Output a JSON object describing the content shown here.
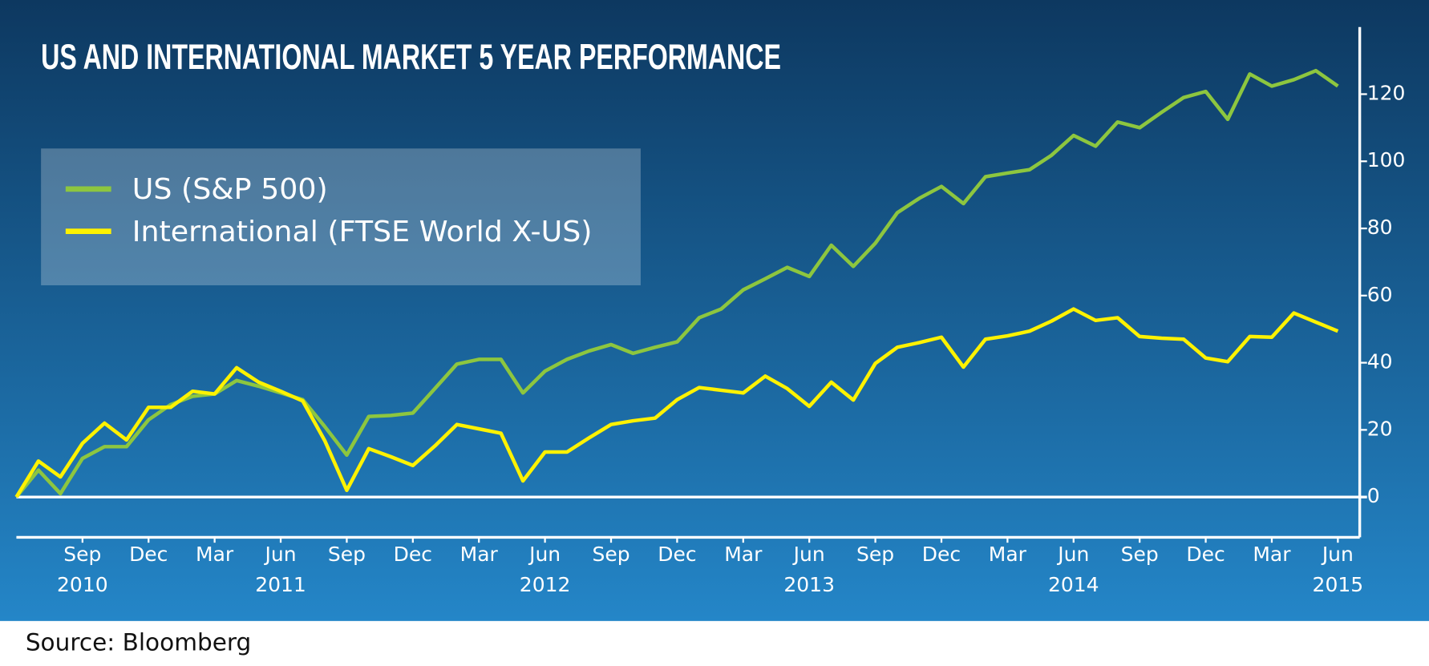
{
  "chart_data": {
    "type": "line",
    "title": "US AND INTERNATIONAL MARKET 5 YEAR PERFORMANCE",
    "source": "Source: Bloomberg",
    "x": [
      "2010-06",
      "2010-07",
      "2010-08",
      "2010-09",
      "2010-10",
      "2010-11",
      "2010-12",
      "2011-01",
      "2011-02",
      "2011-03",
      "2011-04",
      "2011-05",
      "2011-06",
      "2011-07",
      "2011-08",
      "2011-09",
      "2011-10",
      "2011-11",
      "2011-12",
      "2012-01",
      "2012-02",
      "2012-03",
      "2012-04",
      "2012-05",
      "2012-06",
      "2012-07",
      "2012-08",
      "2012-09",
      "2012-10",
      "2012-11",
      "2012-12",
      "2013-01",
      "2013-02",
      "2013-03",
      "2013-04",
      "2013-05",
      "2013-06",
      "2013-07",
      "2013-08",
      "2013-09",
      "2013-10",
      "2013-11",
      "2013-12",
      "2014-01",
      "2014-02",
      "2014-03",
      "2014-04",
      "2014-05",
      "2014-06",
      "2014-07",
      "2014-08",
      "2014-09",
      "2014-10",
      "2014-11",
      "2014-12",
      "2015-01",
      "2015-02",
      "2015-03",
      "2015-04",
      "2015-05",
      "2015-06"
    ],
    "series": [
      {
        "name": "US (S&P 500)",
        "color": "#8dc63f",
        "values": [
          0,
          8,
          1,
          11.5,
          15,
          15,
          23,
          27.5,
          30,
          30.7,
          34.7,
          33,
          31,
          29,
          21,
          12.5,
          24,
          24.3,
          25,
          32.3,
          39.6,
          41,
          41,
          31,
          37.5,
          41,
          43.5,
          45.4,
          42.8,
          44.6,
          46.2,
          53.4,
          56,
          61.7,
          65,
          68.4,
          65.7,
          75,
          68.7,
          75.6,
          84.7,
          89,
          92.5,
          87.4,
          95.4,
          96.5,
          97.5,
          101.8,
          107.7,
          104.5,
          111.7,
          110,
          114.6,
          119,
          120.8,
          112.5,
          126,
          122.4,
          124.3,
          127,
          122.4
        ]
      },
      {
        "name": "International (FTSE World X-US)",
        "color": "#fff200",
        "values": [
          0,
          10.7,
          6,
          16,
          22,
          17,
          26.7,
          26.7,
          31.5,
          30.7,
          38.5,
          34.2,
          31.5,
          28.6,
          16.8,
          2,
          14.4,
          12,
          9.4,
          15.2,
          21.6,
          20.3,
          19,
          4.8,
          13.4,
          13.4,
          17.6,
          21.6,
          22.7,
          23.5,
          29,
          32.6,
          31.8,
          31,
          36,
          32.3,
          27,
          34.2,
          28.9,
          39.8,
          44.6,
          46,
          47.6,
          38.7,
          47,
          48,
          49.4,
          52.4,
          56,
          52.6,
          53.4,
          47.8,
          47.3,
          47,
          41.4,
          40.3,
          47.8,
          47.6,
          54.8,
          52.1,
          49.4
        ]
      }
    ],
    "xticks": [
      {
        "value": "2010-09",
        "label": "Sep"
      },
      {
        "value": "2010-12",
        "label": "Dec"
      },
      {
        "value": "2011-03",
        "label": "Mar"
      },
      {
        "value": "2011-06",
        "label": "Jun"
      },
      {
        "value": "2011-09",
        "label": "Sep"
      },
      {
        "value": "2011-12",
        "label": "Dec"
      },
      {
        "value": "2012-03",
        "label": "Mar"
      },
      {
        "value": "2012-06",
        "label": "Jun"
      },
      {
        "value": "2012-09",
        "label": "Sep"
      },
      {
        "value": "2012-12",
        "label": "Dec"
      },
      {
        "value": "2013-03",
        "label": "Mar"
      },
      {
        "value": "2013-06",
        "label": "Jun"
      },
      {
        "value": "2013-09",
        "label": "Sep"
      },
      {
        "value": "2013-12",
        "label": "Dec"
      },
      {
        "value": "2014-03",
        "label": "Mar"
      },
      {
        "value": "2014-06",
        "label": "Jun"
      },
      {
        "value": "2014-09",
        "label": "Sep"
      },
      {
        "value": "2014-12",
        "label": "Dec"
      },
      {
        "value": "2015-03",
        "label": "Mar"
      },
      {
        "value": "2015-06",
        "label": "Jun"
      }
    ],
    "year_labels": [
      {
        "value": "2010-09",
        "label": "2010"
      },
      {
        "value": "2011-06",
        "label": "2011"
      },
      {
        "value": "2012-06",
        "label": "2012"
      },
      {
        "value": "2013-06",
        "label": "2013"
      },
      {
        "value": "2014-06",
        "label": "2014"
      },
      {
        "value": "2015-06",
        "label": "2015"
      }
    ],
    "ylim": [
      -12,
      140
    ],
    "yticks": [
      0,
      20,
      40,
      60,
      80,
      100,
      120
    ],
    "grid": false,
    "legend": "upper left"
  }
}
